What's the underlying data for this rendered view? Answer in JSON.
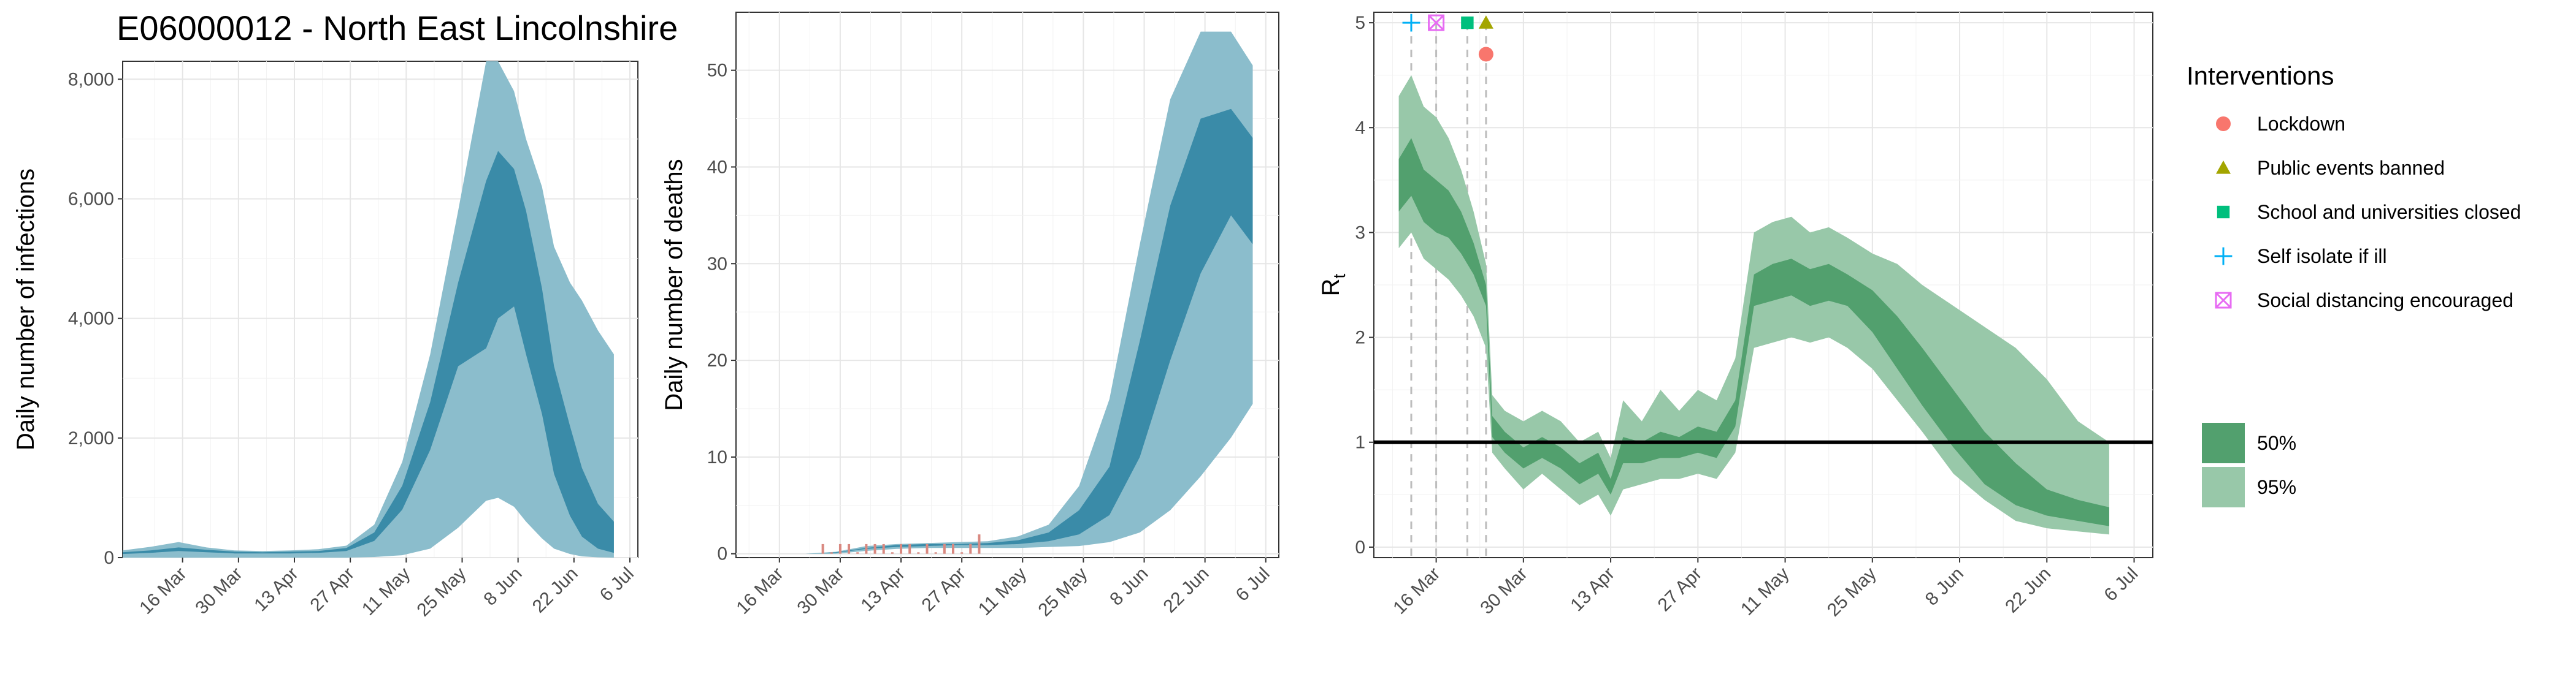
{
  "figure_title": "E06000012 - North East Lincolnshire",
  "colors": {
    "infections_95": "#8bbdcc",
    "infections_50": "#3a8ba8",
    "deaths_95": "#8bbdcc",
    "deaths_50": "#3a8ba8",
    "rt_95": "#98c8a9",
    "rt_50": "#52a06e",
    "lockdown": "#f8766d",
    "public_events": "#a3a500",
    "school": "#00bf7d",
    "self_isolate": "#00b0f6",
    "social_distancing": "#e76bf3"
  },
  "chart_data": [
    {
      "type": "area",
      "xlabel": "",
      "ylabel": "Daily number of infections",
      "ylim": [
        0,
        8300
      ],
      "y_ticks": [
        "0",
        "2,000",
        "4,000",
        "6,000",
        "8,000"
      ],
      "x_ticks": [
        "16 Mar",
        "30 Mar",
        "13 Apr",
        "27 Apr",
        "11 May",
        "25 May",
        "8 Jun",
        "22 Jun",
        "6 Jul"
      ],
      "x": [
        "1 Mar",
        "8 Mar",
        "15 Mar",
        "22 Mar",
        "29 Mar",
        "5 Apr",
        "12 Apr",
        "19 Apr",
        "26 Apr",
        "3 May",
        "10 May",
        "17 May",
        "24 May",
        "31 May",
        "3 Jun",
        "7 Jun",
        "10 Jun",
        "14 Jun",
        "17 Jun",
        "21 Jun",
        "24 Jun",
        "28 Jun",
        "2 Jul"
      ],
      "series": [
        {
          "name": "95%",
          "lower": [
            0,
            0,
            0,
            0,
            0,
            0,
            0,
            0,
            0,
            10,
            40,
            150,
            500,
            950,
            1000,
            850,
            600,
            320,
            150,
            60,
            20,
            5,
            0
          ],
          "upper": [
            120,
            180,
            260,
            170,
            120,
            110,
            120,
            140,
            200,
            550,
            1600,
            3400,
            5800,
            8300,
            8300,
            7800,
            7000,
            6200,
            5200,
            4600,
            4300,
            3800,
            3400
          ]
        },
        {
          "name": "50%",
          "lower": [
            60,
            80,
            110,
            90,
            70,
            70,
            70,
            80,
            110,
            280,
            800,
            1800,
            3200,
            3500,
            4000,
            4200,
            3400,
            2400,
            1400,
            700,
            350,
            150,
            80
          ],
          "upper": [
            90,
            120,
            170,
            130,
            100,
            90,
            100,
            110,
            160,
            420,
            1200,
            2600,
            4600,
            6300,
            6800,
            6500,
            5800,
            4500,
            3200,
            2200,
            1500,
            900,
            600
          ]
        }
      ]
    },
    {
      "type": "area",
      "xlabel": "",
      "ylabel": "Daily number of deaths",
      "ylim": [
        0,
        56
      ],
      "y_ticks": [
        "0",
        "10",
        "20",
        "30",
        "40",
        "50"
      ],
      "x_ticks": [
        "16 Mar",
        "30 Mar",
        "13 Apr",
        "27 Apr",
        "11 May",
        "25 May",
        "8 Jun",
        "22 Jun",
        "6 Jul"
      ],
      "x": [
        "1 Mar",
        "8 Mar",
        "15 Mar",
        "22 Mar",
        "29 Mar",
        "5 Apr",
        "12 Apr",
        "19 Apr",
        "26 Apr",
        "3 May",
        "10 May",
        "17 May",
        "24 May",
        "31 May",
        "7 Jun",
        "14 Jun",
        "21 Jun",
        "28 Jun",
        "3 Jul"
      ],
      "series": [
        {
          "name": "95%",
          "lower": [
            0,
            0,
            0,
            0,
            0,
            0.3,
            0.5,
            0.6,
            0.6,
            0.6,
            0.6,
            0.7,
            0.8,
            1.2,
            2.2,
            4.5,
            8,
            12,
            15.5
          ],
          "upper": [
            0,
            0,
            0,
            0,
            0.2,
            0.8,
            1,
            1.1,
            1.2,
            1.3,
            1.8,
            3,
            7,
            16,
            32,
            47,
            54,
            54,
            50.5
          ]
        },
        {
          "name": "50%",
          "lower": [
            0,
            0,
            0,
            0,
            0.1,
            0.5,
            0.7,
            0.8,
            0.9,
            0.9,
            1,
            1.3,
            2,
            4,
            10,
            20,
            29,
            35,
            32
          ],
          "upper": [
            0,
            0,
            0,
            0,
            0.15,
            0.6,
            0.9,
            1,
            1,
            1.1,
            1.4,
            2.2,
            4.5,
            9,
            22,
            36,
            45,
            46,
            43
          ]
        }
      ],
      "observed_deaths_dates": [
        "26 Mar",
        "28 Mar",
        "30 Mar",
        "1 Apr",
        "3 Apr",
        "5 Apr",
        "7 Apr",
        "9 Apr",
        "11 Apr",
        "13 Apr",
        "15 Apr",
        "17 Apr",
        "19 Apr",
        "21 Apr",
        "23 Apr",
        "25 Apr",
        "27 Apr",
        "29 Apr",
        "1 May"
      ],
      "observed_deaths": [
        1,
        0,
        1,
        1,
        0,
        1,
        1,
        1,
        0,
        1,
        1,
        0,
        1,
        0,
        1,
        1,
        0,
        1,
        2
      ]
    },
    {
      "type": "area",
      "xlabel": "",
      "ylabel": "R",
      "ylabel_subscript": "t",
      "ylim": [
        -0.1,
        5.1
      ],
      "y_ticks": [
        "0",
        "1",
        "2",
        "3",
        "4",
        "5"
      ],
      "x_ticks": [
        "16 Mar",
        "30 Mar",
        "13 Apr",
        "27 Apr",
        "11 May",
        "25 May",
        "8 Jun",
        "22 Jun",
        "6 Jul"
      ],
      "reference_line": 1,
      "x": [
        "10 Mar",
        "12 Mar",
        "14 Mar",
        "16 Mar",
        "18 Mar",
        "20 Mar",
        "22 Mar",
        "24 Mar",
        "25 Mar",
        "27 Mar",
        "30 Mar",
        "2 Apr",
        "5 Apr",
        "8 Apr",
        "11 Apr",
        "13 Apr",
        "15 Apr",
        "18 Apr",
        "21 Apr",
        "24 Apr",
        "27 Apr",
        "30 Apr",
        "3 May",
        "6 May",
        "9 May",
        "12 May",
        "15 May",
        "18 May",
        "21 May",
        "25 May",
        "29 May",
        "2 Jun",
        "7 Jun",
        "12 Jun",
        "17 Jun",
        "22 Jun",
        "27 Jun",
        "2 Jul"
      ],
      "series": [
        {
          "name": "95%",
          "lower": [
            2.85,
            3.0,
            2.75,
            2.65,
            2.55,
            2.4,
            2.2,
            1.9,
            0.9,
            0.75,
            0.55,
            0.7,
            0.55,
            0.4,
            0.5,
            0.3,
            0.55,
            0.6,
            0.65,
            0.65,
            0.7,
            0.65,
            0.9,
            1.9,
            1.95,
            2.0,
            1.95,
            2.0,
            1.9,
            1.7,
            1.4,
            1.1,
            0.7,
            0.45,
            0.25,
            0.18,
            0.15,
            0.12
          ],
          "upper": [
            4.3,
            4.5,
            4.2,
            4.1,
            3.9,
            3.6,
            3.2,
            2.7,
            1.45,
            1.3,
            1.2,
            1.3,
            1.2,
            1.0,
            1.1,
            0.85,
            1.4,
            1.2,
            1.5,
            1.3,
            1.5,
            1.4,
            1.8,
            3.0,
            3.1,
            3.15,
            3.0,
            3.05,
            2.95,
            2.8,
            2.7,
            2.5,
            2.3,
            2.1,
            1.9,
            1.6,
            1.2,
            1.0
          ]
        },
        {
          "name": "50%",
          "lower": [
            3.2,
            3.35,
            3.1,
            3.0,
            2.95,
            2.8,
            2.6,
            2.3,
            1.05,
            0.9,
            0.75,
            0.85,
            0.75,
            0.6,
            0.7,
            0.5,
            0.8,
            0.8,
            0.85,
            0.85,
            0.9,
            0.85,
            1.15,
            2.3,
            2.35,
            2.4,
            2.3,
            2.35,
            2.3,
            2.05,
            1.7,
            1.35,
            0.95,
            0.6,
            0.4,
            0.3,
            0.25,
            0.2
          ],
          "upper": [
            3.7,
            3.9,
            3.6,
            3.5,
            3.4,
            3.2,
            2.9,
            2.5,
            1.25,
            1.1,
            0.95,
            1.05,
            0.95,
            0.8,
            0.9,
            0.65,
            1.05,
            1.0,
            1.1,
            1.05,
            1.15,
            1.1,
            1.4,
            2.6,
            2.7,
            2.75,
            2.65,
            2.7,
            2.6,
            2.45,
            2.2,
            1.9,
            1.5,
            1.1,
            0.8,
            0.55,
            0.45,
            0.38
          ]
        }
      ],
      "interventions": [
        {
          "name": "Self isolate if ill",
          "date": "12 Mar",
          "y": 5.0,
          "shape": "plus"
        },
        {
          "name": "Social distancing encouraged",
          "date": "16 Mar",
          "y": 5.0,
          "shape": "square-x"
        },
        {
          "name": "School and universities closed",
          "date": "21 Mar",
          "y": 5.0,
          "shape": "square"
        },
        {
          "name": "Public events banned",
          "date": "24 Mar",
          "y": 5.0,
          "shape": "triangle"
        },
        {
          "name": "Lockdown",
          "date": "24 Mar",
          "y": 4.7,
          "shape": "circle"
        }
      ]
    }
  ],
  "legend": {
    "title": "Interventions",
    "items": [
      {
        "label": "Lockdown",
        "shape": "circle",
        "color_key": "lockdown"
      },
      {
        "label": "Public events banned",
        "shape": "triangle",
        "color_key": "public_events"
      },
      {
        "label": "School and universities closed",
        "shape": "square",
        "color_key": "school"
      },
      {
        "label": "Self isolate if ill",
        "shape": "plus",
        "color_key": "self_isolate"
      },
      {
        "label": "Social distancing encouraged",
        "shape": "square-x",
        "color_key": "social_distancing"
      }
    ],
    "bands": [
      {
        "label": "50%",
        "color_key": "rt_50"
      },
      {
        "label": "95%",
        "color_key": "rt_95"
      }
    ]
  }
}
